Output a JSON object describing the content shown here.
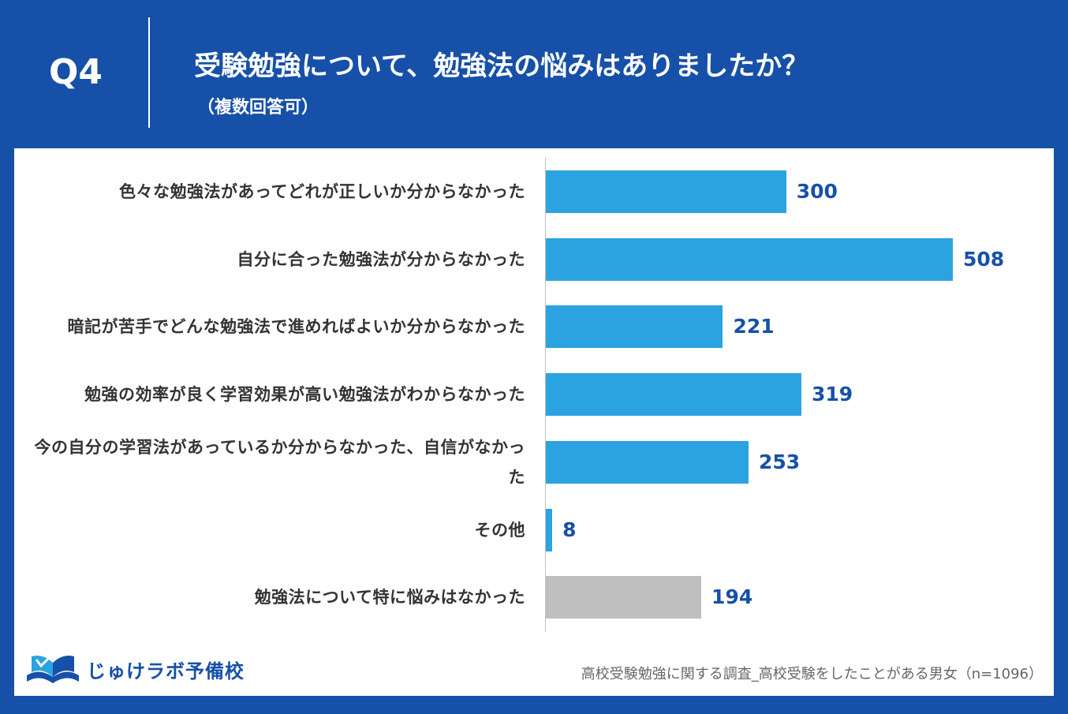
{
  "header": {
    "q_label": "Q4",
    "title": "受験勉強について、勉強法の悩みはありましたか？",
    "subtitle": "（複数回答可）"
  },
  "colors": {
    "background": "#1650a8",
    "bar_primary": "#2ba3e0",
    "bar_other": "#bfbfbf",
    "value_text": "#1650a8"
  },
  "chart_data": {
    "type": "bar",
    "orientation": "horizontal",
    "categories": [
      "色々な勉強法があってどれが正しいか分からなかった",
      "自分に合った勉強法が分からなかった",
      "暗記が苦手でどんな勉強法で進めればよいか分からなかった",
      "勉強の効率が良く学習効果が高い勉強法がわからなかった",
      "今の自分の学習法があっているか分からなかった、自信がなかった",
      "その他",
      "勉強法について特に悩みはなかった"
    ],
    "values": [
      300,
      508,
      221,
      319,
      253,
      8,
      194
    ],
    "bar_colors": [
      "#2ba3e0",
      "#2ba3e0",
      "#2ba3e0",
      "#2ba3e0",
      "#2ba3e0",
      "#2ba3e0",
      "#bfbfbf"
    ],
    "xlim": [
      0,
      508
    ],
    "grid": false,
    "legend": "none"
  },
  "logo": {
    "text": "じゅけラボ予備校",
    "icon": "open-book-icon"
  },
  "footnote": "高校受験勉強に関する調査_高校受験をしたことがある男女（n=1096）"
}
